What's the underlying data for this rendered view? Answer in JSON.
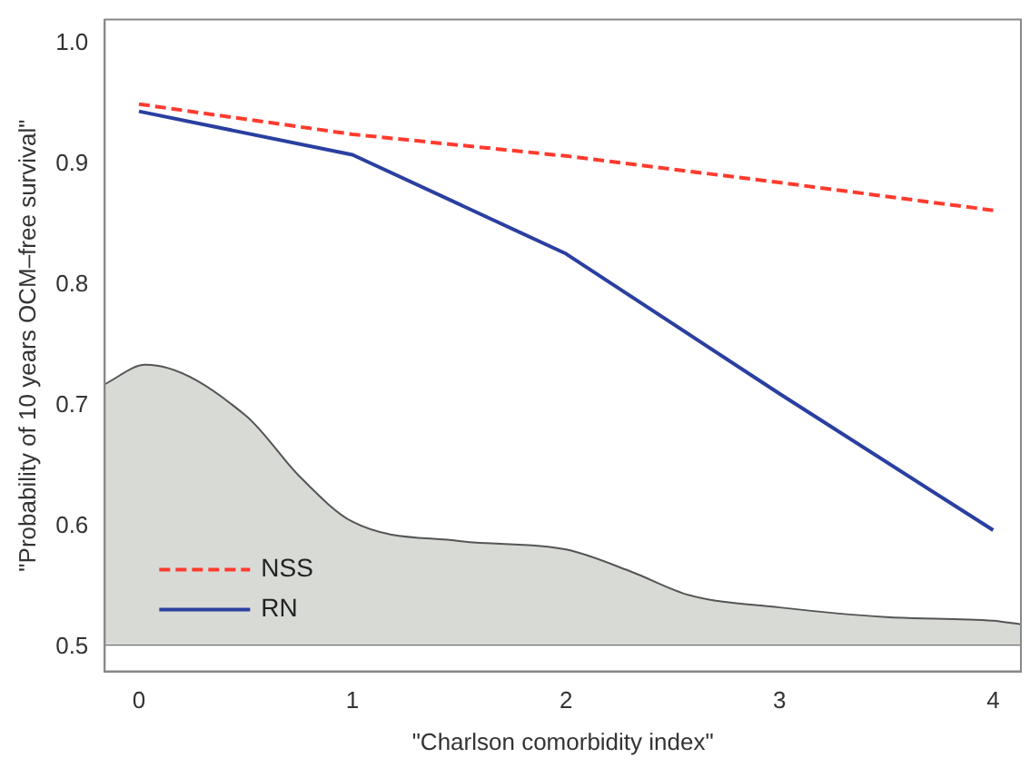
{
  "chart_data": {
    "type": "line",
    "xlabel": "\"Charlson comorbidity index\"",
    "ylabel": "\"Probability of 10 years OCM–free survival\"",
    "x": [
      0,
      1,
      2,
      3,
      4
    ],
    "series": [
      {
        "name": "NSS",
        "color": "#ff3b2e",
        "line_style": "dashed",
        "values": [
          0.95,
          0.925,
          0.907,
          0.885,
          0.862
        ]
      },
      {
        "name": "RN",
        "color": "#2a3fa0",
        "line_style": "solid",
        "values": [
          0.944,
          0.908,
          0.826,
          0.71,
          0.597
        ]
      },
      {
        "type": "area",
        "color": "#d8dad6",
        "x": [
          -0.16,
          0.03,
          0.5,
          0.75,
          1,
          1.5,
          2,
          2.3,
          2.58,
          3,
          3.5,
          4,
          4.13
        ],
        "values": [
          0.718,
          0.734,
          0.692,
          0.642,
          0.604,
          0.588,
          0.581,
          0.563,
          0.543,
          0.533,
          0.525,
          0.522,
          0.519
        ]
      }
    ],
    "ref_lines": [
      {
        "axis": "y",
        "value": 0.502,
        "color": "#555555"
      }
    ],
    "xlim": [
      -0.16,
      4.13
    ],
    "ylim": [
      0.48,
      1.02
    ],
    "xticks": [
      0,
      1,
      2,
      3,
      4
    ],
    "yticks": [
      0.5,
      0.6,
      0.7,
      0.8,
      0.9,
      {
        "value": 1,
        "label": "1.0"
      }
    ],
    "grid": false,
    "legend": "bottom left",
    "marker": "none"
  }
}
